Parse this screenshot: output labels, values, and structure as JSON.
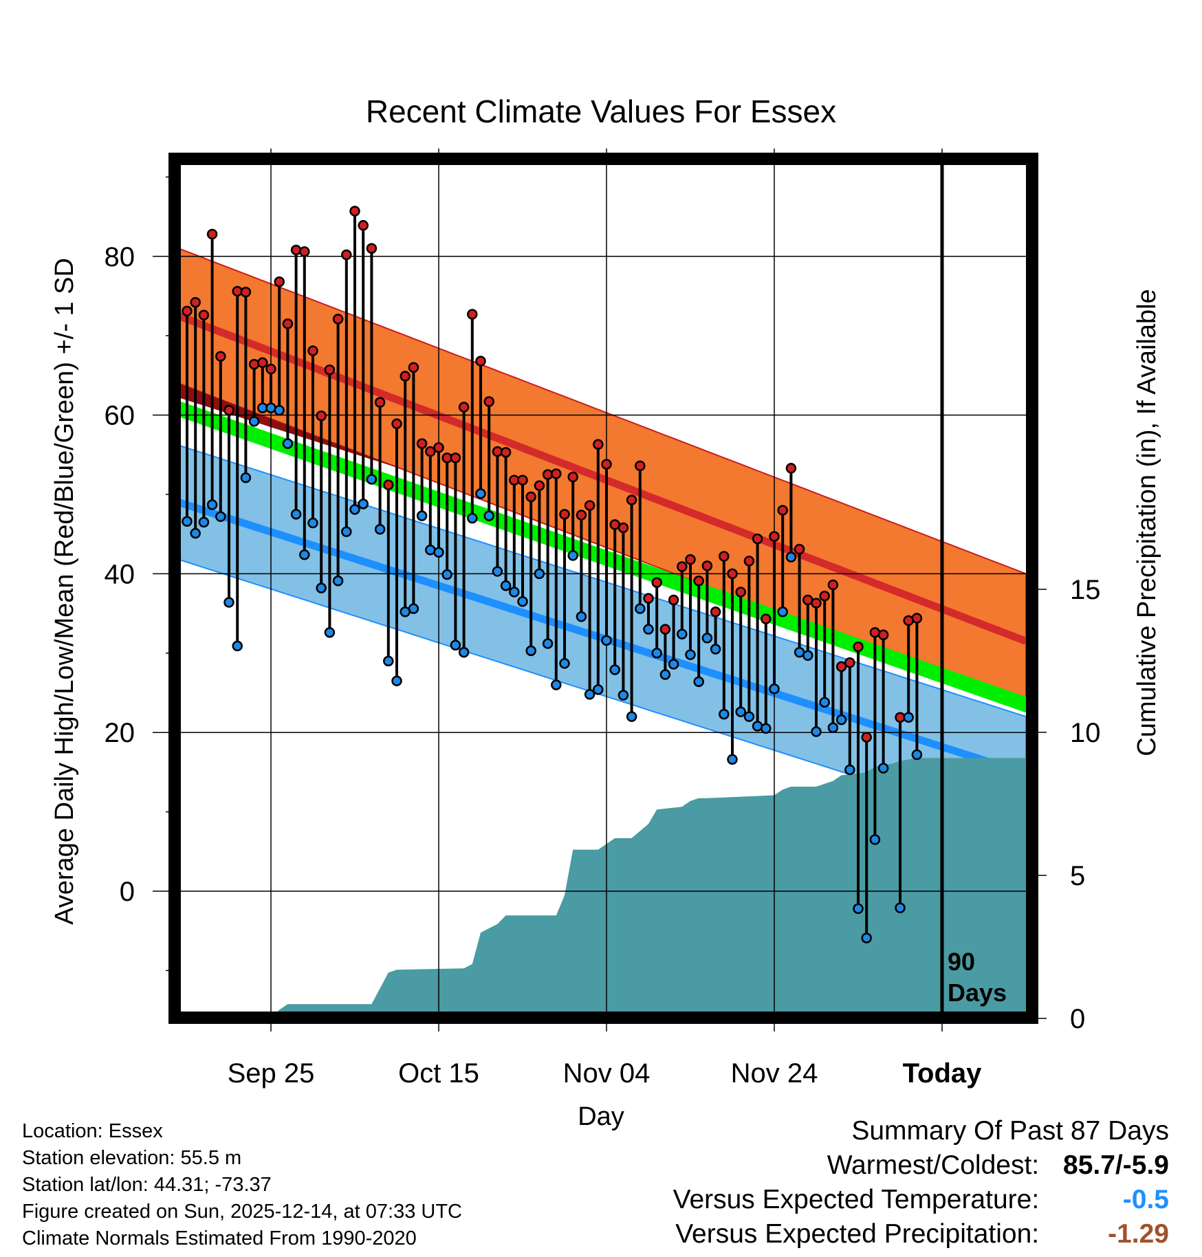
{
  "chart_data": {
    "type": "line",
    "title": "Recent Climate Values For Essex",
    "xlabel": "Day",
    "ylabel": "Average Daily High/Low/Mean (Red/Blue/Green) +/- 1 SD",
    "y2label": "Cumulative Precipitation (in), If Available",
    "x_range_days": [
      -91,
      10
    ],
    "ylim": [
      -15,
      92
    ],
    "y_ticks": [
      0,
      20,
      40,
      60,
      80
    ],
    "y2lim": [
      0,
      29.5
    ],
    "y2_ticks": [
      0,
      5,
      10,
      15
    ],
    "x_ticks": [
      {
        "day": -80,
        "label": "Sep 25"
      },
      {
        "day": -60,
        "label": "Oct 15"
      },
      {
        "day": -40,
        "label": "Nov 04"
      },
      {
        "day": -20,
        "label": "Nov 24"
      },
      {
        "day": 0,
        "label": "Today"
      }
    ],
    "window_label": [
      "90",
      "Days"
    ],
    "normals": {
      "days": [
        -91,
        10
      ],
      "high_mean": [
        72.5,
        31.5
      ],
      "high_sd": 8.5,
      "mean": [
        60.8,
        23.5
      ],
      "mean_sd": 1.0,
      "low_mean": [
        49.0,
        14.8
      ],
      "low_sd": 7.2
    },
    "observations": [
      {
        "day": -90,
        "high": 73.1,
        "low": 46.6
      },
      {
        "day": -89,
        "high": 74.2,
        "low": 45.1
      },
      {
        "day": -88,
        "high": 72.6,
        "low": 46.5
      },
      {
        "day": -87,
        "high": 82.8,
        "low": 48.7
      },
      {
        "day": -86,
        "high": 67.4,
        "low": 47.2
      },
      {
        "day": -85,
        "high": 60.6,
        "low": 36.4
      },
      {
        "day": -84,
        "high": 75.6,
        "low": 30.9
      },
      {
        "day": -83,
        "high": 75.5,
        "low": 52.1
      },
      {
        "day": -82,
        "high": 66.4,
        "low": 59.2
      },
      {
        "day": -81,
        "high": 66.6,
        "low": 60.9
      },
      {
        "day": -80,
        "high": 65.8,
        "low": 60.9
      },
      {
        "day": -79,
        "high": 76.8,
        "low": 60.6
      },
      {
        "day": -78,
        "high": 71.5,
        "low": 56.4
      },
      {
        "day": -77,
        "high": 80.8,
        "low": 47.5
      },
      {
        "day": -76,
        "high": 80.6,
        "low": 42.4
      },
      {
        "day": -75,
        "high": 68.1,
        "low": 46.4
      },
      {
        "day": -74,
        "high": 59.9,
        "low": 38.2
      },
      {
        "day": -73,
        "high": 65.7,
        "low": 32.6
      },
      {
        "day": -72,
        "high": 72.1,
        "low": 39.1
      },
      {
        "day": -71,
        "high": 80.2,
        "low": 45.3
      },
      {
        "day": -70,
        "high": 85.7,
        "low": 48.1
      },
      {
        "day": -69,
        "high": 83.9,
        "low": 48.8
      },
      {
        "day": -68,
        "high": 81.0,
        "low": 51.9
      },
      {
        "day": -67,
        "high": 61.6,
        "low": 45.6
      },
      {
        "day": -66,
        "high": 51.2,
        "low": 29.0
      },
      {
        "day": -65,
        "high": 58.9,
        "low": 26.5
      },
      {
        "day": -64,
        "high": 64.9,
        "low": 35.2
      },
      {
        "day": -63,
        "high": 66.0,
        "low": 35.6
      },
      {
        "day": -62,
        "high": 56.4,
        "low": 47.3
      },
      {
        "day": -61,
        "high": 55.4,
        "low": 43.0
      },
      {
        "day": -60,
        "high": 55.9,
        "low": 42.7
      },
      {
        "day": -59,
        "high": 54.6,
        "low": 39.9
      },
      {
        "day": -58,
        "high": 54.6,
        "low": 31.0
      },
      {
        "day": -57,
        "high": 61.0,
        "low": 30.1
      },
      {
        "day": -56,
        "high": 72.7,
        "low": 47.0
      },
      {
        "day": -55,
        "high": 66.8,
        "low": 50.1
      },
      {
        "day": -54,
        "high": 61.7,
        "low": 47.3
      },
      {
        "day": -53,
        "high": 55.4,
        "low": 40.3
      },
      {
        "day": -52,
        "high": 55.3,
        "low": 38.5
      },
      {
        "day": -51,
        "high": 51.8,
        "low": 37.7
      },
      {
        "day": -50,
        "high": 51.8,
        "low": 36.5
      },
      {
        "day": -49,
        "high": 49.7,
        "low": 30.3
      },
      {
        "day": -48,
        "high": 51.1,
        "low": 40.0
      },
      {
        "day": -47,
        "high": 52.5,
        "low": 31.2
      },
      {
        "day": -46,
        "high": 52.6,
        "low": 26.0
      },
      {
        "day": -45,
        "high": 47.5,
        "low": 28.7
      },
      {
        "day": -44,
        "high": 52.2,
        "low": 42.3
      },
      {
        "day": -43,
        "high": 47.4,
        "low": 34.6
      },
      {
        "day": -42,
        "high": 48.6,
        "low": 24.8
      },
      {
        "day": -41,
        "high": 56.3,
        "low": 25.4
      },
      {
        "day": -40,
        "high": 53.8,
        "low": 31.6
      },
      {
        "day": -39,
        "high": 46.2,
        "low": 27.9
      },
      {
        "day": -38,
        "high": 45.8,
        "low": 24.7
      },
      {
        "day": -37,
        "high": 49.3,
        "low": 22.0
      },
      {
        "day": -36,
        "high": 53.6,
        "low": 35.6
      },
      {
        "day": -35,
        "high": 36.9,
        "low": 33.0
      },
      {
        "day": -34,
        "high": 38.9,
        "low": 30.0
      },
      {
        "day": -33,
        "high": 33.0,
        "low": 27.3
      },
      {
        "day": -32,
        "high": 36.7,
        "low": 28.6
      },
      {
        "day": -31,
        "high": 40.9,
        "low": 32.4
      },
      {
        "day": -30,
        "high": 41.8,
        "low": 29.8
      },
      {
        "day": -29,
        "high": 39.1,
        "low": 26.4
      },
      {
        "day": -28,
        "high": 41.0,
        "low": 31.9
      },
      {
        "day": -27,
        "high": 35.2,
        "low": 30.5
      },
      {
        "day": -26,
        "high": 42.2,
        "low": 22.3
      },
      {
        "day": -25,
        "high": 40.0,
        "low": 16.6
      },
      {
        "day": -24,
        "high": 37.7,
        "low": 22.6
      },
      {
        "day": -23,
        "high": 41.6,
        "low": 22.0
      },
      {
        "day": -22,
        "high": 44.4,
        "low": 20.8
      },
      {
        "day": -21,
        "high": 34.3,
        "low": 20.5
      },
      {
        "day": -20,
        "high": 44.7,
        "low": 25.5
      },
      {
        "day": -19,
        "high": 48.0,
        "low": 35.2
      },
      {
        "day": -18,
        "high": 53.3,
        "low": 42.1
      },
      {
        "day": -17,
        "high": 43.1,
        "low": 30.1
      },
      {
        "day": -16,
        "high": 36.7,
        "low": 29.7
      },
      {
        "day": -15,
        "high": 36.3,
        "low": 20.1
      },
      {
        "day": -14,
        "high": 37.2,
        "low": 23.8
      },
      {
        "day": -13,
        "high": 38.6,
        "low": 20.6
      },
      {
        "day": -12,
        "high": 28.3,
        "low": 21.6
      },
      {
        "day": -11,
        "high": 28.8,
        "low": 15.3
      },
      {
        "day": -10,
        "high": 30.8,
        "low": -2.2
      },
      {
        "day": -9,
        "high": 19.4,
        "low": -5.9
      },
      {
        "day": -8,
        "high": 32.6,
        "low": 6.5
      },
      {
        "day": -7,
        "high": 32.3,
        "low": 15.5
      },
      {
        "day": -5,
        "high": 21.9,
        "low": -2.1
      },
      {
        "day": -4,
        "high": 34.1,
        "low": 21.9
      },
      {
        "day": -3,
        "high": 34.4,
        "low": 17.2
      }
    ],
    "precipitation_cumulative": {
      "days": [
        -91,
        -80,
        -79,
        -78,
        -68,
        -66,
        -65,
        -57,
        -56,
        -55,
        -53,
        -52,
        -48,
        -46,
        -45,
        -44,
        -41,
        -40,
        -39,
        -37,
        -35,
        -34,
        -31,
        -30,
        -29,
        -28,
        -20,
        -19,
        -18,
        -15,
        -14,
        -13,
        -12,
        -9,
        -8,
        -6,
        -5,
        -3,
        10
      ],
      "cumulative": [
        0,
        0,
        0.3,
        0.5,
        0.5,
        1.6,
        1.7,
        1.75,
        1.9,
        3.0,
        3.3,
        3.6,
        3.6,
        3.6,
        4.3,
        5.9,
        5.9,
        6.1,
        6.3,
        6.3,
        6.8,
        7.3,
        7.4,
        7.6,
        7.7,
        7.7,
        7.8,
        8.0,
        8.1,
        8.1,
        8.2,
        8.3,
        8.5,
        8.6,
        8.8,
        8.9,
        9.0,
        9.1,
        9.1
      ]
    }
  },
  "footer": {
    "location": "Location: Essex",
    "elevation": "Station elevation: 55.5 m",
    "latlon": "Station lat/lon: 44.31; -73.37",
    "created": "Figure created on Sun, 2025-12-14, at 07:33 UTC",
    "normals": "Climate Normals Estimated From 1990-2020"
  },
  "summary": {
    "title": "Summary Of Past 87 Days",
    "warm_cold_label": "Warmest/Coldest:",
    "warm_cold_value": "85.7/-5.9",
    "temp_label": "Versus Expected Temperature:",
    "temp_value": "-0.5",
    "temp_color": "#1E90FF",
    "precip_label": "Versus Expected Precipitation:",
    "precip_value": "-1.29",
    "precip_color": "#A0522D"
  },
  "colors": {
    "high_band": "#F37830",
    "high_line": "#D42A2A",
    "low_band": "#82C0E6",
    "low_line": "#1E8FFF",
    "mean_band": "#00EE00",
    "below_high_dark": "#8B1010",
    "precip": "#4A9BA3",
    "high_marker": "#D02020",
    "low_marker": "#1E88E5"
  }
}
